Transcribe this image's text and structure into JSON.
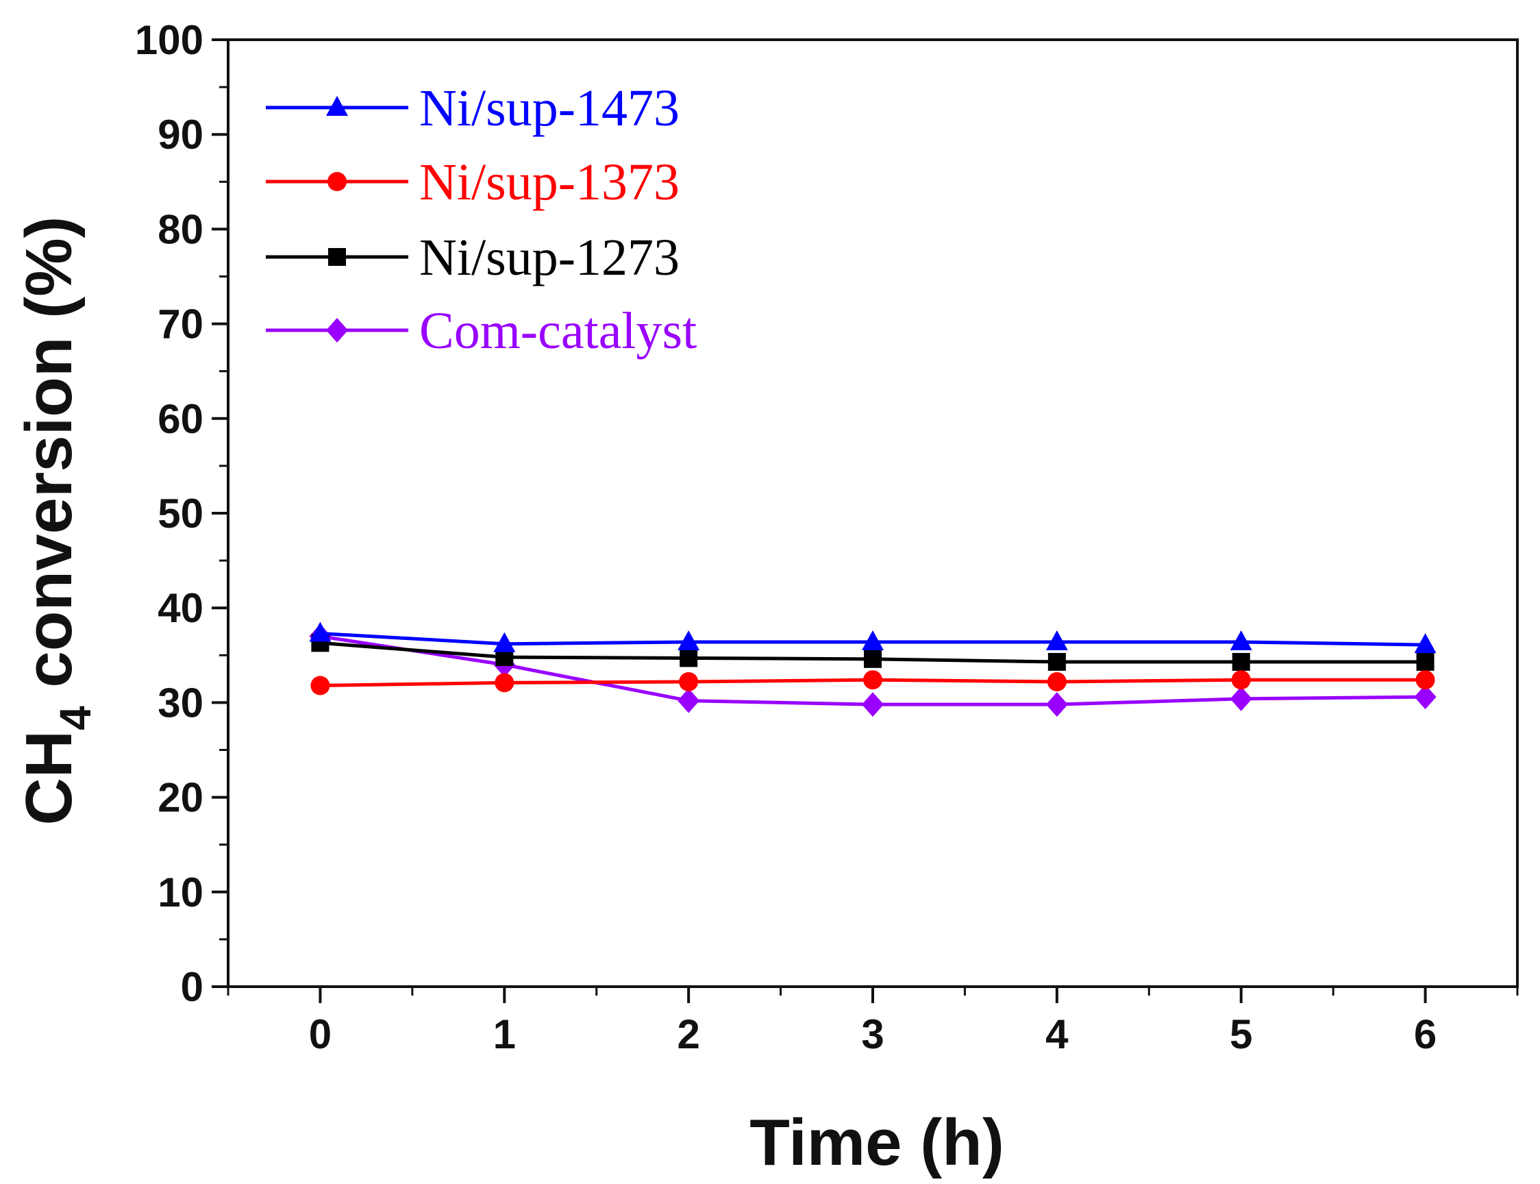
{
  "chart_data": {
    "type": "line",
    "title": "",
    "xlabel": "Time (h)",
    "ylabel": {
      "main": "CH",
      "subscript": "4",
      "rest": " conversion (%)"
    },
    "xlim": [
      -0.5,
      6.5
    ],
    "ylim": [
      0,
      100
    ],
    "x": [
      0,
      1,
      2,
      3,
      4,
      5,
      6
    ],
    "x_ticks": [
      "0",
      "1",
      "2",
      "3",
      "4",
      "5",
      "6"
    ],
    "y_ticks": [
      "0",
      "10",
      "20",
      "30",
      "40",
      "50",
      "60",
      "70",
      "80",
      "90",
      "100"
    ],
    "grid": false,
    "legend_position": "top-left",
    "series": [
      {
        "name": "Ni/sup-1473",
        "color": "#0000ff",
        "marker": "triangle",
        "values": [
          37.3,
          36.2,
          36.4,
          36.4,
          36.4,
          36.4,
          36.1
        ]
      },
      {
        "name": "Ni/sup-1373",
        "color": "#ff0000",
        "marker": "circle",
        "values": [
          31.8,
          32.1,
          32.2,
          32.4,
          32.2,
          32.4,
          32.4
        ]
      },
      {
        "name": "Ni/sup-1273",
        "color": "#000000",
        "marker": "square",
        "values": [
          36.3,
          34.8,
          34.7,
          34.6,
          34.3,
          34.3,
          34.3
        ]
      },
      {
        "name": "Com-catalyst",
        "color": "#9900ff",
        "marker": "diamond",
        "values": [
          37.0,
          34.0,
          30.2,
          29.8,
          29.8,
          30.4,
          30.6
        ]
      }
    ]
  }
}
